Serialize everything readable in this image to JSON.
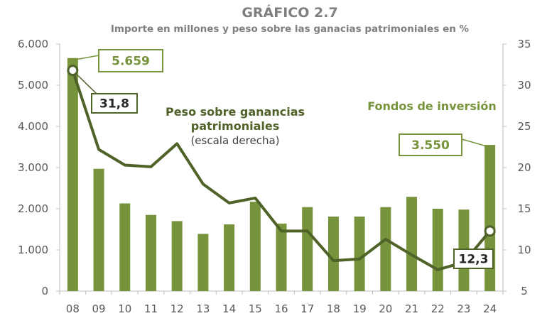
{
  "chart_data": {
    "type": "bar",
    "title": "GRÁFICO 2.7",
    "subtitle": "Importe en millones y peso sobre las ganacias patrimoniales en %",
    "categories": [
      "08",
      "09",
      "10",
      "11",
      "12",
      "13",
      "14",
      "15",
      "16",
      "17",
      "18",
      "19",
      "20",
      "21",
      "22",
      "23",
      "24"
    ],
    "series": [
      {
        "name": "Fondos de inversión",
        "type": "bar",
        "axis": "left",
        "color": "#77933c",
        "values": [
          5659,
          2970,
          2130,
          1850,
          1700,
          1390,
          1620,
          2170,
          1640,
          2040,
          1810,
          1810,
          2040,
          2290,
          2000,
          1980,
          3550
        ]
      },
      {
        "name": "Peso sobre ganancias patrimoniales",
        "type": "line",
        "axis": "right",
        "color": "#4f6228",
        "values": [
          31.8,
          22.2,
          20.3,
          20.1,
          22.9,
          18.0,
          15.7,
          16.3,
          12.3,
          12.3,
          8.7,
          8.9,
          11.3,
          9.4,
          7.6,
          8.5,
          12.3
        ]
      }
    ],
    "y_left": {
      "min": 0,
      "max": 6000,
      "ticks": [
        0,
        1000,
        2000,
        3000,
        4000,
        5000,
        6000
      ],
      "tick_labels": [
        "0",
        "1.000",
        "2.000",
        "3.000",
        "4.000",
        "5.000",
        "6.000"
      ]
    },
    "y_right": {
      "min": 5,
      "max": 35,
      "ticks": [
        5,
        10,
        15,
        20,
        25,
        30,
        35
      ],
      "tick_labels": [
        "5",
        "10",
        "15",
        "20",
        "25",
        "30",
        "35"
      ]
    },
    "annotations": {
      "bar_first": "5.659",
      "bar_last": "3.550",
      "line_first": "31,8",
      "line_last": "12,3",
      "line_label_1": "Peso sobre ganancias",
      "line_label_2": "patrimoniales",
      "line_label_3": "(escala derecha)",
      "bar_label": "Fondos de inversión"
    },
    "colors": {
      "bar": "#77933c",
      "line": "#4f6228",
      "axis": "#bfbfbf",
      "text": "#595959",
      "title": "#7f7f7f"
    }
  }
}
